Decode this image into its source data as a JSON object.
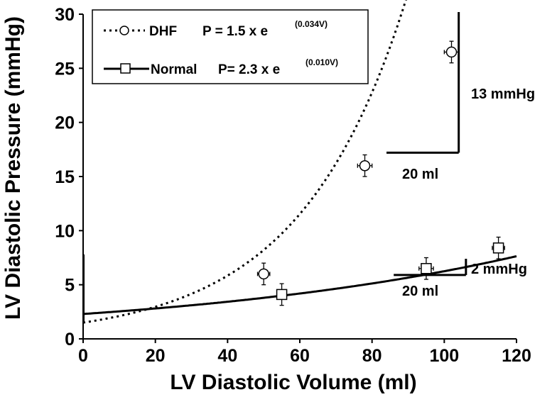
{
  "chart_data": {
    "type": "line",
    "xlabel": "LV Diastolic Volume (ml)",
    "ylabel": "LV Diastolic Pressure (mmHg)",
    "xlim": [
      0,
      120
    ],
    "ylim": [
      0,
      30
    ],
    "x_ticks": [
      "0",
      "20",
      "40",
      "60",
      "80",
      "100",
      "120"
    ],
    "y_ticks": [
      "0",
      "5",
      "10",
      "15",
      "20",
      "25",
      "30"
    ],
    "grid": false,
    "legend_position": "top-left",
    "series": [
      {
        "name": "DHF",
        "equation_prefix": "P = 1.5 x e",
        "equation_exponent": "(0.034V)",
        "curve": {
          "a": 1.5,
          "b": 0.034,
          "x_range": [
            0,
            104
          ]
        },
        "line_style": "dotted",
        "marker": "circle",
        "points": [
          {
            "x": 50,
            "y": 6.0,
            "xerr": 1.7,
            "yerr": 1.0
          },
          {
            "x": 78,
            "y": 16.0,
            "xerr": 2.0,
            "yerr": 1.0
          },
          {
            "x": 102,
            "y": 26.5,
            "xerr": 2.0,
            "yerr": 1.0
          }
        ]
      },
      {
        "name": "Normal",
        "equation_prefix": "P= 2.3 x e",
        "equation_exponent": "(0.010V)",
        "curve": {
          "a": 2.3,
          "b": 0.01,
          "x_range": [
            0,
            120
          ]
        },
        "line_style": "solid",
        "marker": "square",
        "points": [
          {
            "x": 55,
            "y": 4.1,
            "xerr": 1.0,
            "yerr": 1.0
          },
          {
            "x": 95,
            "y": 6.5,
            "xerr": 2.0,
            "yerr": 1.0
          },
          {
            "x": 115,
            "y": 8.4,
            "xerr": 1.7,
            "yerr": 1.0
          }
        ]
      }
    ],
    "annotations": [
      {
        "text": "13 mmHg",
        "bracket_x": [
          84,
          104
        ],
        "bracket_y": [
          17.2,
          30.2
        ]
      },
      {
        "text": "20 ml",
        "bracket": 0
      },
      {
        "text": "2 mmHg",
        "bracket_x": [
          86,
          106
        ],
        "bracket_y": [
          5.9,
          7.4
        ]
      },
      {
        "text": "20 ml",
        "bracket": 1
      }
    ]
  }
}
